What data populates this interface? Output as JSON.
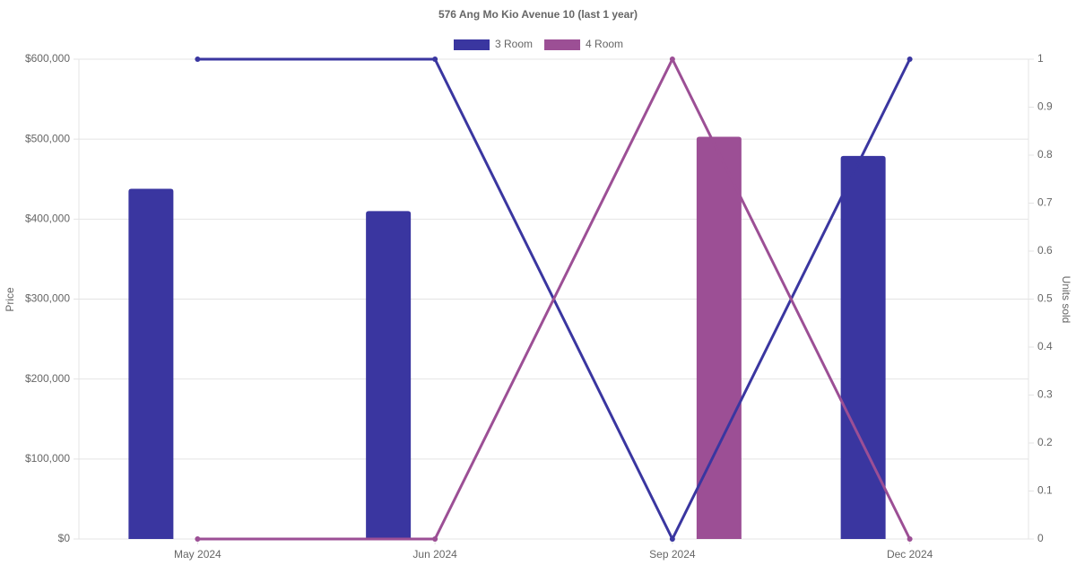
{
  "chart_data": {
    "type": "bar-line",
    "title": "576 Ang Mo Kio Avenue 10 (last 1 year)",
    "y_label": "Price",
    "y2_label": "Units sold",
    "categories": [
      "May 2024",
      "Jun 2024",
      "Sep 2024",
      "Dec 2024"
    ],
    "series": [
      {
        "name": "3 Room",
        "type": "bar",
        "color": "#3a36a0",
        "values": [
          438000,
          410000,
          null,
          479000
        ]
      },
      {
        "name": "4 Room",
        "type": "bar",
        "color": "#9c4f95",
        "values": [
          null,
          null,
          503000,
          null
        ]
      },
      {
        "name": "3 Room",
        "type": "line",
        "axis": "y2",
        "color": "#3a36a0",
        "values": [
          1,
          1,
          0,
          1
        ]
      },
      {
        "name": "4 Room",
        "type": "line",
        "axis": "y2",
        "color": "#9c4f95",
        "values": [
          0,
          0,
          1,
          0
        ]
      }
    ],
    "ylim": [
      0,
      600000
    ],
    "yticks": [
      {
        "value": 0,
        "label": "$0"
      },
      {
        "value": 100000,
        "label": "$100,000"
      },
      {
        "value": 200000,
        "label": "$200,000"
      },
      {
        "value": 300000,
        "label": "$300,000"
      },
      {
        "value": 400000,
        "label": "$400,000"
      },
      {
        "value": 500000,
        "label": "$500,000"
      },
      {
        "value": 600000,
        "label": "$600,000"
      }
    ],
    "y2lim": [
      0,
      1
    ],
    "y2ticks": [
      0,
      0.1,
      0.2,
      0.3,
      0.4,
      0.5,
      0.6,
      0.7,
      0.8,
      0.9,
      1
    ],
    "grid": true,
    "legend": "top"
  }
}
